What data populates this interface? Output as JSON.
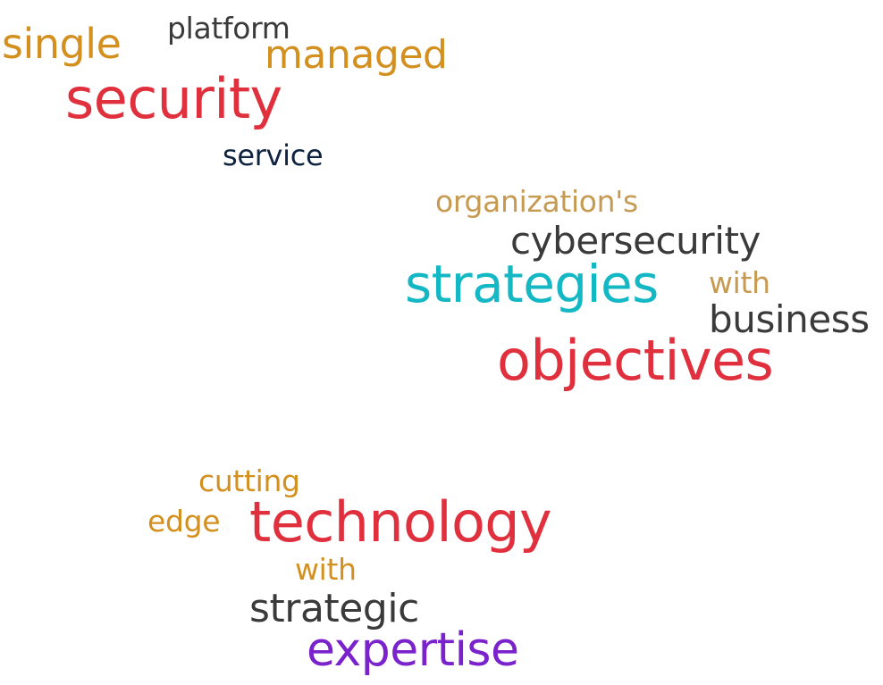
{
  "word_cloud": {
    "cluster_1": {
      "single": "single",
      "platform": "platform",
      "managed": "managed",
      "security": "security",
      "service": "service"
    },
    "cluster_2": {
      "organizations": "organization's",
      "cybersecurity": "cybersecurity",
      "strategies": "strategies",
      "with": "with",
      "business": "business",
      "objectives": "objectives"
    },
    "cluster_3": {
      "cutting": "cutting",
      "edge": "edge",
      "technology": "technology",
      "with": "with",
      "strategic": "strategic",
      "expertise": "expertise"
    }
  },
  "colors": {
    "orange": "#d4901f",
    "gold": "#c79a52",
    "red": "#e0303d",
    "gray": "#3a3a3a",
    "navy": "#0d2340",
    "teal": "#14b8c4",
    "purple": "#7a22cc"
  }
}
